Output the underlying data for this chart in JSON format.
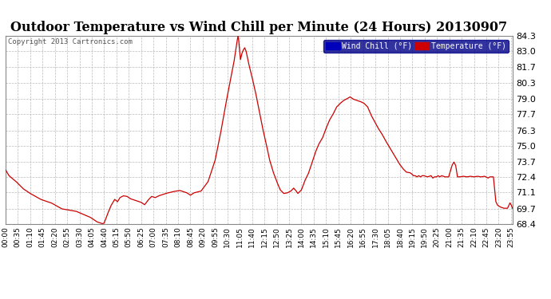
{
  "title": "Outdoor Temperature vs Wind Chill per Minute (24 Hours) 20130907",
  "copyright": "Copyright 2013 Cartronics.com",
  "yticks": [
    84.3,
    83.0,
    81.7,
    80.3,
    79.0,
    77.7,
    76.3,
    75.0,
    73.7,
    72.4,
    71.1,
    69.7,
    68.4
  ],
  "ylim": [
    68.4,
    84.3
  ],
  "bg_color": "#ffffff",
  "plot_bg_color": "#ffffff",
  "grid_color": "#bbbbbb",
  "line_color": "#cc0000",
  "title_fontsize": 11.5,
  "legend_wind_label": "Wind Chill (°F)",
  "legend_temp_label": "Temperature (°F)",
  "legend_wind_color": "#0000bb",
  "legend_temp_color": "#cc0000",
  "xtick_interval": 35,
  "total_minutes": 1440,
  "keypoints": [
    [
      0,
      73.0
    ],
    [
      10,
      72.5
    ],
    [
      30,
      72.0
    ],
    [
      50,
      71.4
    ],
    [
      70,
      71.0
    ],
    [
      100,
      70.5
    ],
    [
      130,
      70.2
    ],
    [
      160,
      69.7
    ],
    [
      200,
      69.5
    ],
    [
      240,
      69.0
    ],
    [
      260,
      68.6
    ],
    [
      270,
      68.5
    ],
    [
      275,
      68.45
    ],
    [
      280,
      68.5
    ],
    [
      290,
      69.3
    ],
    [
      300,
      70.0
    ],
    [
      310,
      70.5
    ],
    [
      318,
      70.3
    ],
    [
      325,
      70.65
    ],
    [
      335,
      70.8
    ],
    [
      345,
      70.75
    ],
    [
      355,
      70.55
    ],
    [
      370,
      70.4
    ],
    [
      385,
      70.25
    ],
    [
      395,
      70.05
    ],
    [
      405,
      70.45
    ],
    [
      415,
      70.75
    ],
    [
      425,
      70.65
    ],
    [
      435,
      70.8
    ],
    [
      455,
      71.0
    ],
    [
      475,
      71.15
    ],
    [
      495,
      71.25
    ],
    [
      515,
      71.05
    ],
    [
      525,
      70.85
    ],
    [
      535,
      71.05
    ],
    [
      555,
      71.2
    ],
    [
      575,
      72.0
    ],
    [
      595,
      73.8
    ],
    [
      610,
      76.0
    ],
    [
      625,
      78.5
    ],
    [
      638,
      80.5
    ],
    [
      648,
      82.0
    ],
    [
      653,
      83.0
    ],
    [
      657,
      83.8
    ],
    [
      660,
      84.3
    ],
    [
      662,
      83.9
    ],
    [
      664,
      83.2
    ],
    [
      667,
      82.3
    ],
    [
      671,
      82.8
    ],
    [
      675,
      83.1
    ],
    [
      679,
      83.3
    ],
    [
      683,
      83.0
    ],
    [
      690,
      82.0
    ],
    [
      700,
      80.8
    ],
    [
      710,
      79.5
    ],
    [
      720,
      78.0
    ],
    [
      730,
      76.5
    ],
    [
      740,
      75.2
    ],
    [
      750,
      73.8
    ],
    [
      760,
      72.8
    ],
    [
      770,
      72.0
    ],
    [
      780,
      71.3
    ],
    [
      790,
      71.0
    ],
    [
      800,
      71.05
    ],
    [
      810,
      71.2
    ],
    [
      818,
      71.45
    ],
    [
      824,
      71.25
    ],
    [
      830,
      71.0
    ],
    [
      840,
      71.3
    ],
    [
      850,
      72.1
    ],
    [
      860,
      72.7
    ],
    [
      870,
      73.6
    ],
    [
      880,
      74.5
    ],
    [
      890,
      75.2
    ],
    [
      900,
      75.7
    ],
    [
      910,
      76.5
    ],
    [
      920,
      77.2
    ],
    [
      930,
      77.7
    ],
    [
      940,
      78.3
    ],
    [
      950,
      78.6
    ],
    [
      960,
      78.85
    ],
    [
      970,
      79.0
    ],
    [
      978,
      79.15
    ],
    [
      988,
      78.95
    ],
    [
      998,
      78.85
    ],
    [
      1008,
      78.75
    ],
    [
      1018,
      78.6
    ],
    [
      1028,
      78.3
    ],
    [
      1038,
      77.6
    ],
    [
      1048,
      77.05
    ],
    [
      1058,
      76.5
    ],
    [
      1068,
      76.05
    ],
    [
      1078,
      75.5
    ],
    [
      1088,
      75.0
    ],
    [
      1098,
      74.5
    ],
    [
      1108,
      74.0
    ],
    [
      1118,
      73.5
    ],
    [
      1128,
      73.1
    ],
    [
      1138,
      72.8
    ],
    [
      1148,
      72.75
    ],
    [
      1153,
      72.65
    ],
    [
      1158,
      72.5
    ],
    [
      1163,
      72.5
    ],
    [
      1168,
      72.4
    ],
    [
      1173,
      72.5
    ],
    [
      1178,
      72.4
    ],
    [
      1183,
      72.5
    ],
    [
      1188,
      72.5
    ],
    [
      1198,
      72.4
    ],
    [
      1208,
      72.5
    ],
    [
      1213,
      72.3
    ],
    [
      1218,
      72.4
    ],
    [
      1223,
      72.4
    ],
    [
      1228,
      72.5
    ],
    [
      1233,
      72.4
    ],
    [
      1238,
      72.5
    ],
    [
      1248,
      72.4
    ],
    [
      1258,
      72.4
    ],
    [
      1268,
      73.4
    ],
    [
      1273,
      73.65
    ],
    [
      1278,
      73.35
    ],
    [
      1283,
      72.4
    ],
    [
      1290,
      72.4
    ],
    [
      1300,
      72.45
    ],
    [
      1310,
      72.4
    ],
    [
      1320,
      72.45
    ],
    [
      1330,
      72.4
    ],
    [
      1340,
      72.45
    ],
    [
      1350,
      72.4
    ],
    [
      1360,
      72.45
    ],
    [
      1370,
      72.3
    ],
    [
      1375,
      72.4
    ],
    [
      1380,
      72.4
    ],
    [
      1385,
      72.4
    ],
    [
      1388,
      71.5
    ],
    [
      1392,
      70.3
    ],
    [
      1397,
      70.0
    ],
    [
      1405,
      69.85
    ],
    [
      1415,
      69.75
    ],
    [
      1425,
      69.75
    ],
    [
      1432,
      70.2
    ],
    [
      1436,
      70.0
    ],
    [
      1439,
      69.75
    ]
  ]
}
